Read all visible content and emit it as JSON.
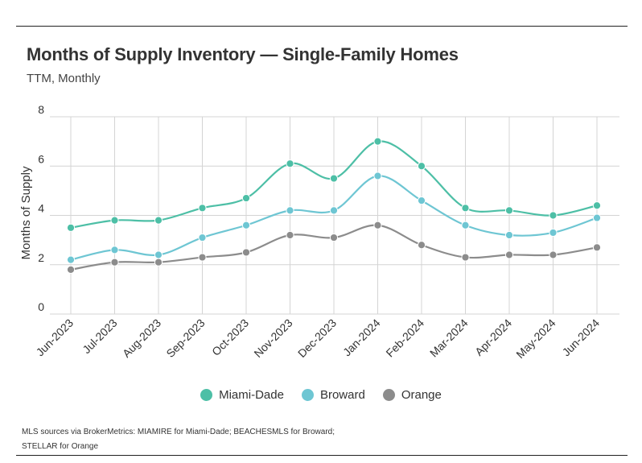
{
  "header": {
    "title": "Months of Supply Inventory — Single-Family Homes",
    "subtitle": "TTM, Monthly"
  },
  "chart_data": {
    "type": "line",
    "title": "Months of Supply Inventory — Single-Family Homes",
    "subtitle": "TTM, Monthly",
    "xlabel": "",
    "ylabel": "Months of Supply",
    "ylim": [
      0,
      8
    ],
    "yticks": [
      0,
      2,
      4,
      6,
      8
    ],
    "grid": true,
    "legend_position": "bottom",
    "categories": [
      "Jun-2023",
      "Jul-2023",
      "Aug-2023",
      "Sep-2023",
      "Oct-2023",
      "Nov-2023",
      "Dec-2023",
      "Jan-2024",
      "Feb-2024",
      "Mar-2024",
      "Apr-2024",
      "May-2024",
      "Jun-2024"
    ],
    "series": [
      {
        "name": "Miami-Dade",
        "color": "#4dbfa6",
        "values": [
          3.5,
          3.8,
          3.8,
          4.3,
          4.7,
          6.1,
          5.5,
          7.0,
          6.0,
          4.3,
          4.2,
          4.0,
          4.4
        ]
      },
      {
        "name": "Broward",
        "color": "#6ec6d3",
        "values": [
          2.2,
          2.6,
          2.4,
          3.1,
          3.6,
          4.2,
          4.2,
          5.6,
          4.6,
          3.6,
          3.2,
          3.3,
          3.9
        ]
      },
      {
        "name": "Orange",
        "color": "#8c8c8c",
        "values": [
          1.8,
          2.1,
          2.1,
          2.3,
          2.5,
          3.2,
          3.1,
          3.6,
          2.8,
          2.3,
          2.4,
          2.4,
          2.7
        ]
      }
    ]
  },
  "legend": {
    "items": [
      {
        "label": "Miami-Dade",
        "color": "#4dbfa6"
      },
      {
        "label": "Broward",
        "color": "#6ec6d3"
      },
      {
        "label": "Orange",
        "color": "#8c8c8c"
      }
    ]
  },
  "footer": {
    "source_line1": "MLS sources via BrokerMetrics: MIAMIRE for Miami-Dade; BEACHESMLS for Broward;",
    "source_line2": "STELLAR for Orange"
  }
}
